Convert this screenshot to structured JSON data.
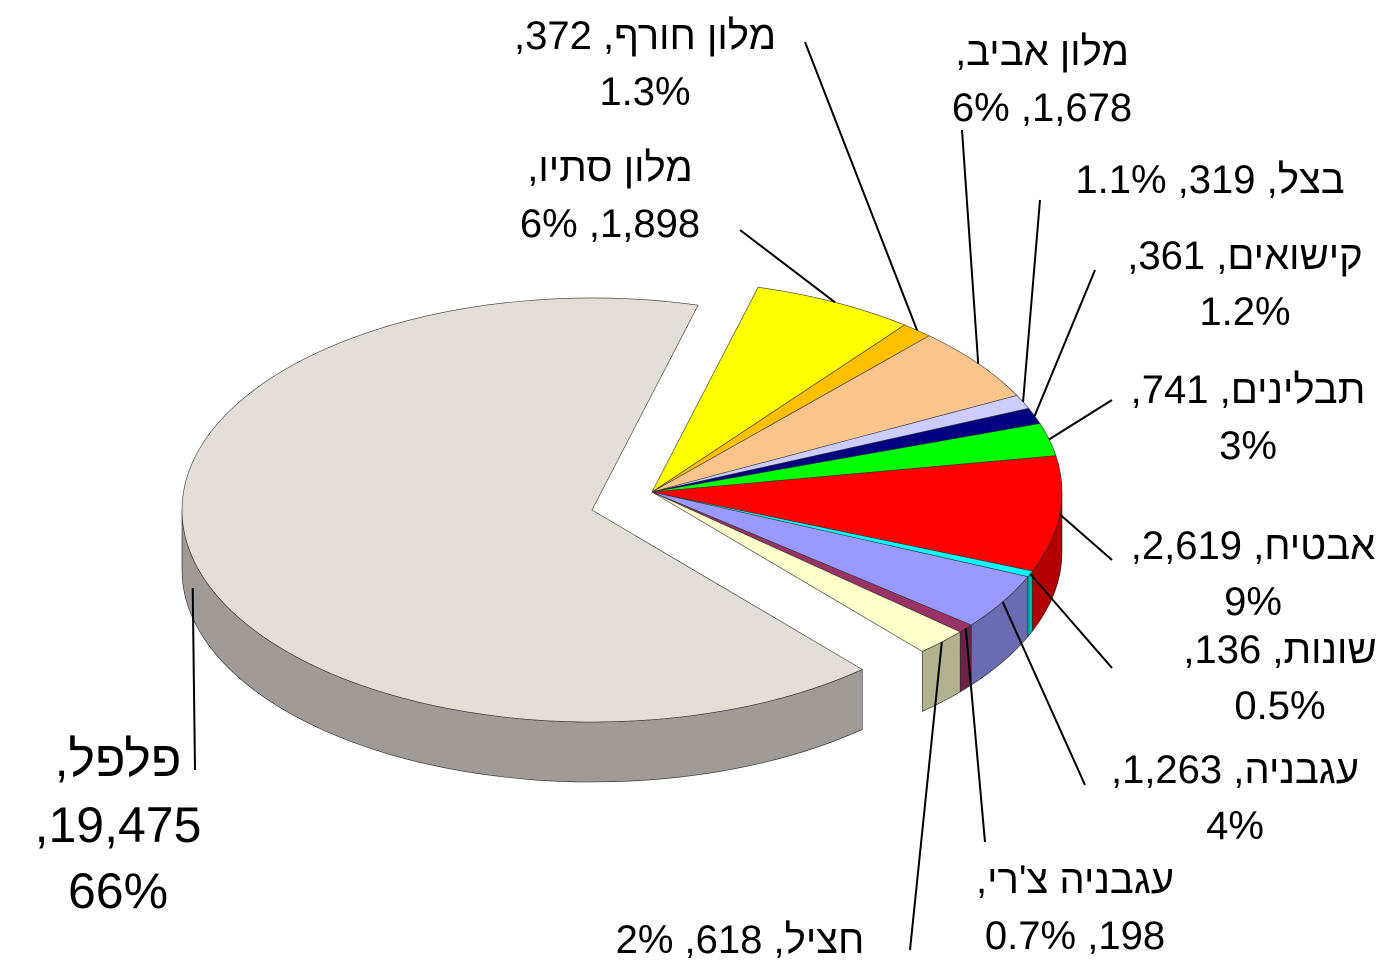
{
  "chart_data": {
    "type": "pie",
    "categories": [
      "מלון סתיו,",
      "מלון חורף,",
      "מלון אביב,",
      "בצל,",
      "קישואים,",
      "תבלינים,",
      "אבטיח,",
      "שונות,",
      "עגבניה,",
      "עגבניה צ'רי,",
      "חציל,",
      "פלפל,"
    ],
    "values": [
      1898,
      372,
      1678,
      319,
      361,
      741,
      2619,
      136,
      1263,
      198,
      618,
      19475
    ],
    "value_labels": [
      "1,898,",
      "372,",
      "1,678,",
      "319,",
      "361,",
      "741,",
      "2,619,",
      "136,",
      "1,263,",
      "198,",
      "618,",
      "19,475,"
    ],
    "percentages": [
      6,
      1.3,
      6,
      1.1,
      1.2,
      3,
      9,
      0.5,
      4,
      0.7,
      2,
      66
    ],
    "percentage_labels": [
      "6%",
      "1.3%",
      "6%",
      "1.1%",
      "1.2%",
      "3%",
      "9%",
      "0.5%",
      "4%",
      "0.7%",
      "2%",
      "66%"
    ],
    "colors": [
      "#ffff00",
      "#ffc000",
      "#fac48c",
      "#ccccff",
      "#000080",
      "#00ff00",
      "#ff0000",
      "#00ffff",
      "#9999ff",
      "#993366",
      "#ffffcc",
      "#e4ded8"
    ]
  }
}
